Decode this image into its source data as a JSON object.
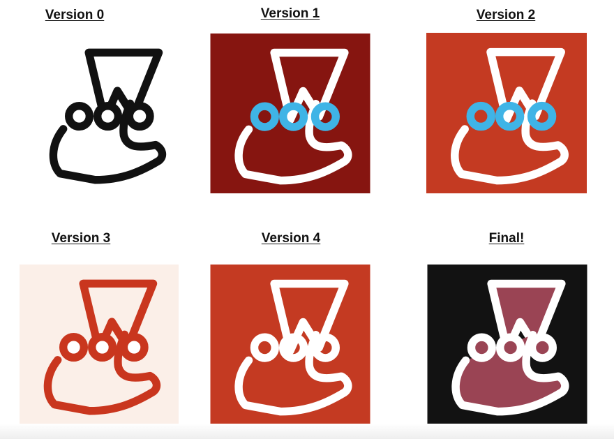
{
  "versions": [
    {
      "label": "Version 0",
      "icon": "jest-logo-icon",
      "bg": "#ffffff",
      "stroke": "#111111",
      "fill": "none",
      "ring": "#111111",
      "ring_fill": "#ffffff",
      "ball_fill": "#ffffff"
    },
    {
      "label": "Version 1",
      "icon": "jest-logo-icon",
      "bg": "#861510",
      "stroke": "#ffffff",
      "fill": "none",
      "ring": "#3fb4e6",
      "ring_fill": "none",
      "ball_fill": "none"
    },
    {
      "label": "Version 2",
      "icon": "jest-logo-icon",
      "bg": "#c43a22",
      "stroke": "#ffffff",
      "fill": "none",
      "ring": "#3fb4e6",
      "ring_fill": "none",
      "ball_fill": "none"
    },
    {
      "label": "Version 3",
      "icon": "jest-logo-icon",
      "bg": "#fbefe8",
      "stroke": "#c9361e",
      "fill": "none",
      "ring": "#c9361e",
      "ring_fill": "#ffffff",
      "ball_fill": "#ffffff"
    },
    {
      "label": "Version 4",
      "icon": "jest-logo-icon",
      "bg": "#c43a22",
      "stroke": "#ffffff",
      "fill": "none",
      "ring": "#ffffff",
      "ring_fill": "none",
      "ball_fill": "none"
    },
    {
      "label": "Final!",
      "icon": "jest-logo-icon",
      "bg": "#121212",
      "stroke": "#ffffff",
      "fill": "#9a4454",
      "ring": "#ffffff",
      "ring_fill": "#9a4454",
      "ball_fill": "#9a4454"
    }
  ]
}
